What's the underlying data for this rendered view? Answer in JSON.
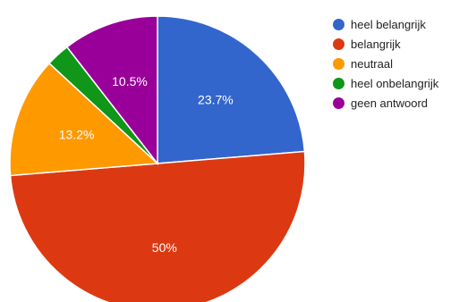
{
  "chart_data": {
    "type": "pie",
    "slices": [
      {
        "label": "heel belangrijk",
        "value": 23.7,
        "display": "23.7%",
        "color": "#3366cc"
      },
      {
        "label": "belangrijk",
        "value": 50,
        "display": "50%",
        "color": "#dc3912"
      },
      {
        "label": "neutraal",
        "value": 13.2,
        "display": "13.2%",
        "color": "#ff9900"
      },
      {
        "label": "heel onbelangrijk",
        "value": 2.6,
        "display": "",
        "color": "#109618"
      },
      {
        "label": "geen antwoord",
        "value": 10.5,
        "display": "10.5%",
        "color": "#990099"
      }
    ],
    "start_direction": "top",
    "order": "clockwise",
    "legend_position": "right"
  }
}
